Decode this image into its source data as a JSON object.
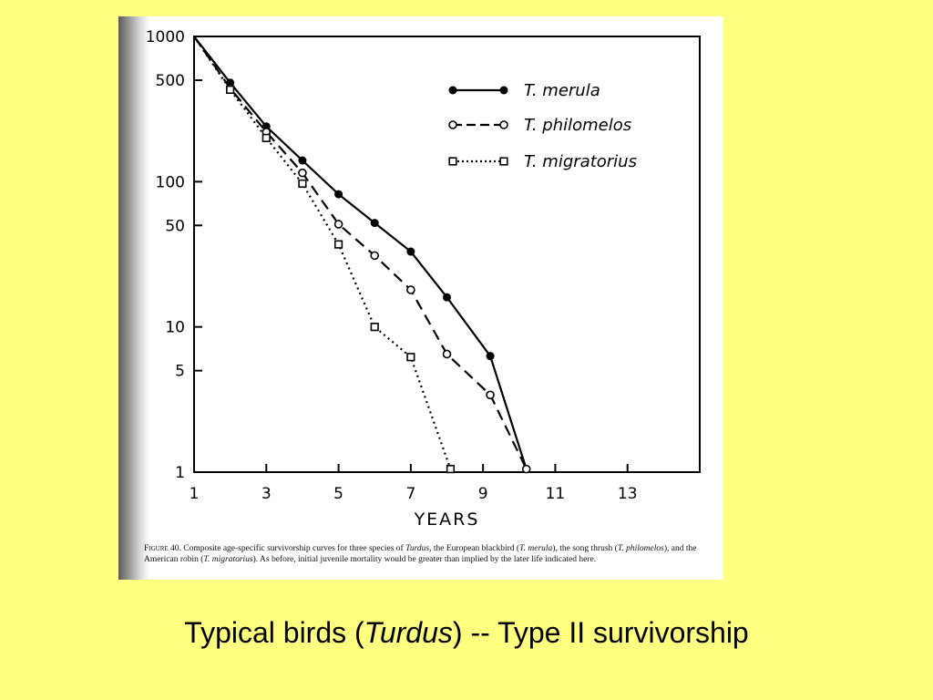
{
  "colors": {
    "background": "#ffff80",
    "panel": "#ffffff",
    "ink": "#000000"
  },
  "chart_data": {
    "type": "line",
    "xlabel": "YEARS",
    "ylabel": "",
    "y_scale": "log",
    "xlim": [
      1,
      15
    ],
    "ylim": [
      1,
      1000
    ],
    "x_ticks": [
      1,
      3,
      5,
      7,
      9,
      11,
      13
    ],
    "y_ticks": [
      1,
      5,
      10,
      50,
      100,
      500,
      1000
    ],
    "grid": false,
    "legend_position": "top-right",
    "series": [
      {
        "name": "T. merula",
        "line_style": "solid",
        "marker": "filled-circle",
        "x": [
          1,
          2,
          3,
          4,
          5,
          6,
          7,
          8,
          9.2,
          10.2
        ],
        "y": [
          1000,
          480,
          240,
          140,
          82,
          52,
          33,
          16,
          6.3,
          1.05
        ]
      },
      {
        "name": "T. philomelos",
        "line_style": "dashed",
        "marker": "open-circle",
        "x": [
          1,
          2,
          3,
          4,
          5,
          6,
          7,
          8,
          9.2,
          10.2
        ],
        "y": [
          1000,
          440,
          220,
          115,
          51,
          31,
          18,
          6.5,
          3.4,
          1.05
        ]
      },
      {
        "name": "T. migratorius",
        "line_style": "dotted",
        "marker": "open-square",
        "x": [
          1,
          2,
          3,
          4,
          5,
          6,
          7,
          8.1
        ],
        "y": [
          1000,
          430,
          200,
          97,
          37,
          10,
          6.2,
          1.05
        ]
      }
    ]
  },
  "caption": {
    "label": "Figure 40.",
    "part1": " Composite age-specific survivorship curves for three species of ",
    "genus": "Turdus",
    "part2": ", the European blackbird (",
    "sp1": "T. merula",
    "part3": "), the song thrush (",
    "sp2": "T. philomelos",
    "part4": "), and the American robin (",
    "sp3": "T. migratorius",
    "part5": "). As before, initial juvenile mortality would be greater than implied by the later life indicated here."
  },
  "slide_title": {
    "pre": "Typical birds (",
    "genus": "Turdus",
    "post": ") -- Type II survivorship"
  }
}
